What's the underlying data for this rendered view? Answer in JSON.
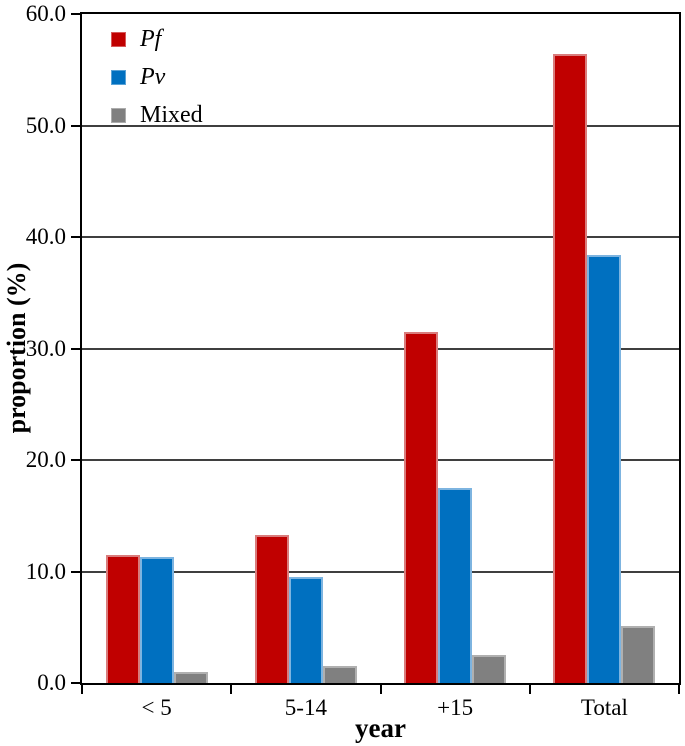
{
  "chart_data": {
    "type": "bar",
    "title": "",
    "xlabel": "year",
    "ylabel": "proportion (%)",
    "categories": [
      "< 5",
      "5-14",
      "+15",
      "Total"
    ],
    "series": [
      {
        "name": "Pf",
        "italic": true,
        "color": "#c00000",
        "edge_color": "#d97c7c",
        "values": [
          11.5,
          13.3,
          31.5,
          56.4
        ]
      },
      {
        "name": "Pv",
        "italic": true,
        "color": "#0070c0",
        "edge_color": "#7db4e0",
        "values": [
          11.3,
          9.5,
          17.5,
          38.4
        ]
      },
      {
        "name": "Mixed",
        "italic": false,
        "color": "#808080",
        "edge_color": "#b0b0b0",
        "values": [
          1.0,
          1.5,
          2.5,
          5.1
        ]
      }
    ],
    "ylim": [
      0,
      60
    ],
    "ytick_step": 10,
    "ytick_labels": [
      "0.0",
      "10.0",
      "20.0",
      "30.0",
      "40.0",
      "50.0",
      "60.0"
    ],
    "grid": true,
    "legend_position": "top-left",
    "legend_entries": [
      "Pf",
      "Pv",
      "Mixed"
    ]
  },
  "colors": {
    "background": "#ffffff",
    "axis": "#000000",
    "gridline": "#3f3f3f",
    "text": "#000000"
  }
}
